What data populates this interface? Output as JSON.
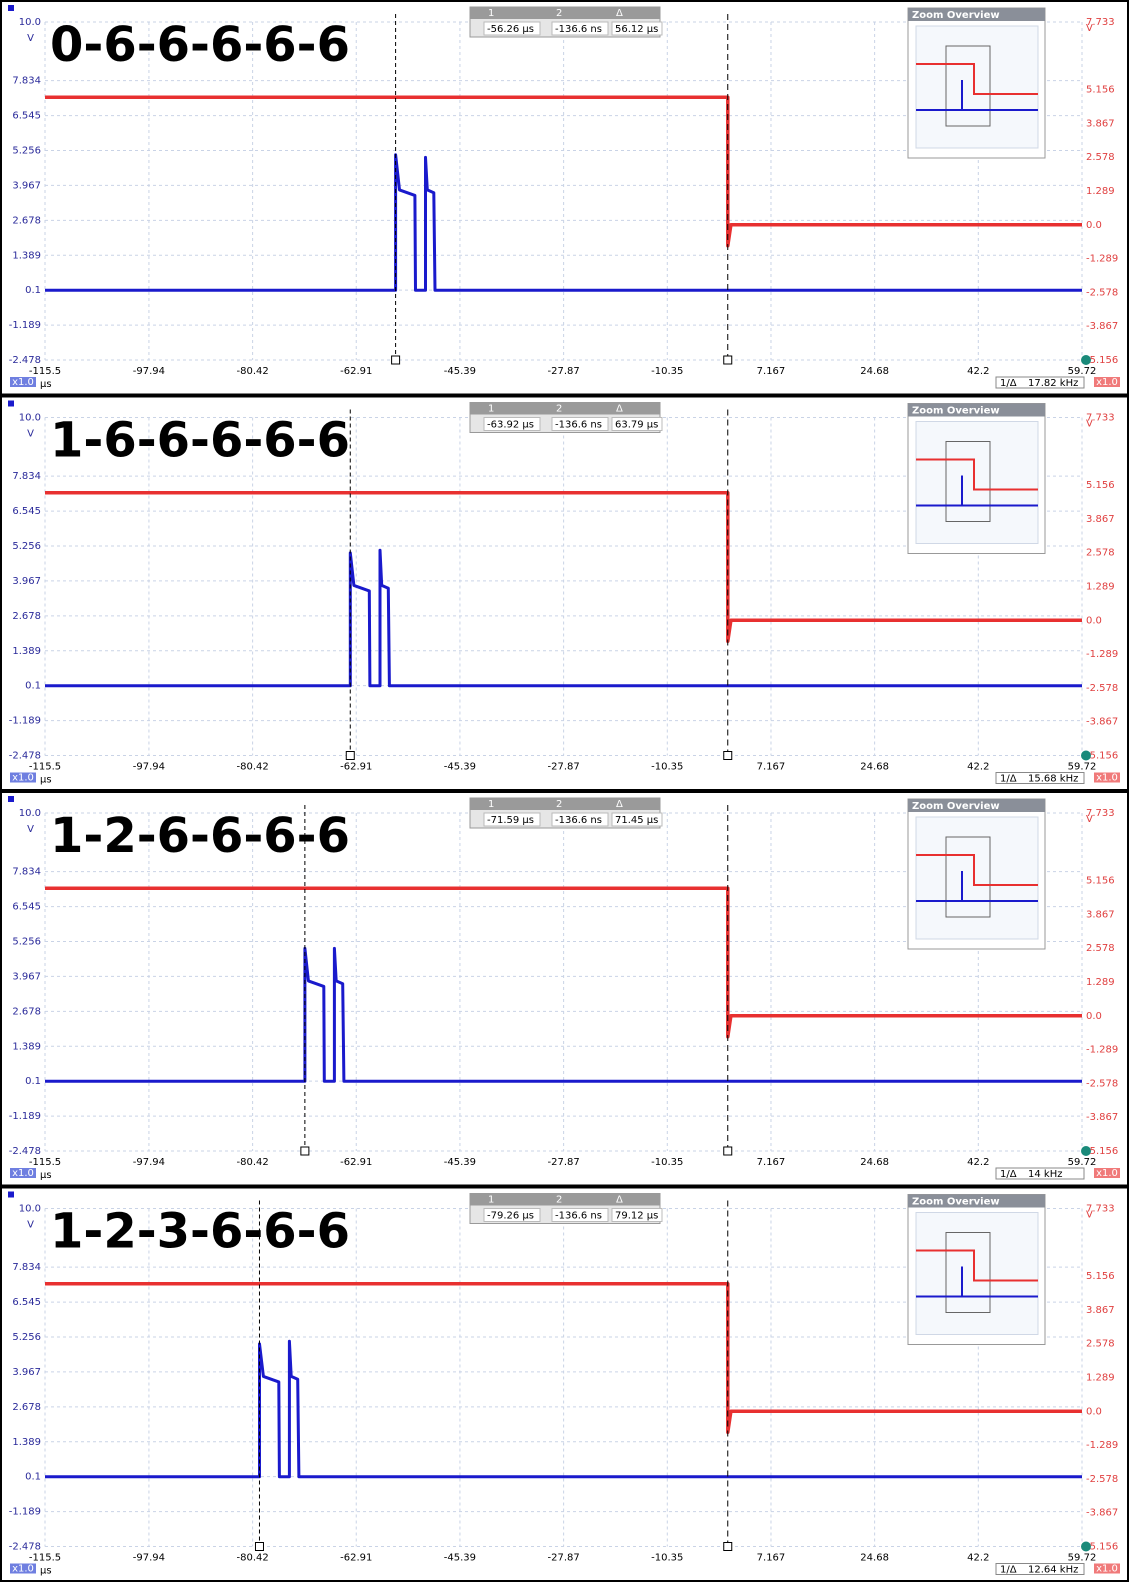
{
  "chart_data": [
    {
      "type": "line",
      "title": "0-6-6-6-6-6",
      "ylabel": "V",
      "y2label": "V",
      "xlabel": "µs",
      "x_badge": "x1.0",
      "y2_badge": "x1.0",
      "xlim": [
        -115.5,
        59.72
      ],
      "xticks": [
        -115.5,
        -97.94,
        -80.42,
        -62.91,
        -45.39,
        -27.87,
        -10.35,
        7.167,
        24.68,
        42.2,
        59.72
      ],
      "ylim": [
        -2.478,
        10
      ],
      "yticks": [
        -2.478,
        -1.189,
        0.1,
        1.389,
        2.678,
        3.967,
        5.256,
        6.545,
        7.834,
        {
          "value": 10,
          "label": "10.0"
        }
      ],
      "y2lim": [
        -5.156,
        7.733
      ],
      "y2ticks": [
        -5.156,
        -3.867,
        -2.578,
        -1.289,
        {
          "value": 0,
          "label": "0.0"
        },
        1.289,
        2.578,
        3.867,
        5.156,
        7.733
      ],
      "grid": true,
      "overview_title": "Zoom Overview",
      "cursors": [
        {
          "name": "1",
          "x": -56.26,
          "label": "-56.26 µs"
        },
        {
          "name": "2",
          "x": -0.1366,
          "label": "-136.6 ns"
        }
      ],
      "delta": {
        "name": "Δ",
        "label": "56.12 µs"
      },
      "readout": {
        "name": "1/Δ",
        "label": "17.82 kHz"
      },
      "series": [
        {
          "color": "#1a1acc",
          "axis": "y",
          "x": [
            -115.5,
            -56.26,
            -56.26,
            -55.6,
            -53.0,
            -52.9,
            -51.2,
            -51.2,
            -50.9,
            -49.8,
            -49.6,
            59.72
          ],
          "values": [
            0.1,
            0.1,
            5.1,
            3.8,
            3.6,
            0.1,
            0.1,
            5.0,
            3.8,
            3.7,
            0.1,
            0.1
          ]
        },
        {
          "color": "#e83030",
          "axis": "y2",
          "x": [
            -115.5,
            -0.1366,
            -0.1366,
            0.4,
            59.72
          ],
          "values": [
            4.86,
            4.86,
            -0.8,
            0,
            0
          ]
        }
      ]
    },
    {
      "type": "line",
      "title": "1-6-6-6-6-6",
      "ylabel": "V",
      "y2label": "V",
      "xlabel": "µs",
      "x_badge": "x1.0",
      "y2_badge": "x1.0",
      "xlim": [
        -115.5,
        59.72
      ],
      "xticks": [
        -115.5,
        -97.94,
        -80.42,
        -62.91,
        -45.39,
        -27.87,
        -10.35,
        7.167,
        24.68,
        42.2,
        59.72
      ],
      "ylim": [
        -2.478,
        10
      ],
      "yticks": [
        -2.478,
        -1.189,
        0.1,
        1.389,
        2.678,
        3.967,
        5.256,
        6.545,
        7.834,
        {
          "value": 10,
          "label": "10.0"
        }
      ],
      "y2lim": [
        -5.156,
        7.733
      ],
      "y2ticks": [
        -5.156,
        -3.867,
        -2.578,
        -1.289,
        {
          "value": 0,
          "label": "0.0"
        },
        1.289,
        2.578,
        3.867,
        5.156,
        7.733
      ],
      "grid": true,
      "overview_title": "Zoom Overview",
      "cursors": [
        {
          "name": "1",
          "x": -63.92,
          "label": "-63.92 µs"
        },
        {
          "name": "2",
          "x": -0.1366,
          "label": "-136.6 ns"
        }
      ],
      "delta": {
        "name": "Δ",
        "label": "63.79 µs"
      },
      "readout": {
        "name": "1/Δ",
        "label": "15.68 kHz"
      },
      "series": [
        {
          "color": "#1a1acc",
          "axis": "y",
          "x": [
            -115.5,
            -63.92,
            -63.92,
            -63.3,
            -60.7,
            -60.6,
            -58.9,
            -58.9,
            -58.6,
            -57.5,
            -57.3,
            59.72
          ],
          "values": [
            0.1,
            0.1,
            5.0,
            3.8,
            3.6,
            0.1,
            0.1,
            5.1,
            3.8,
            3.7,
            0.1,
            0.1
          ]
        },
        {
          "color": "#e83030",
          "axis": "y2",
          "x": [
            -115.5,
            -0.1366,
            -0.1366,
            0.4,
            59.72
          ],
          "values": [
            4.86,
            4.86,
            -0.8,
            0,
            0
          ]
        }
      ]
    },
    {
      "type": "line",
      "title": "1-2-6-6-6-6",
      "ylabel": "V",
      "y2label": "V",
      "xlabel": "µs",
      "x_badge": "x1.0",
      "y2_badge": "x1.0",
      "xlim": [
        -115.5,
        59.72
      ],
      "xticks": [
        -115.5,
        -97.94,
        -80.42,
        -62.91,
        -45.39,
        -27.87,
        -10.35,
        7.167,
        24.68,
        42.2,
        59.72
      ],
      "ylim": [
        -2.478,
        10
      ],
      "yticks": [
        -2.478,
        -1.189,
        0.1,
        1.389,
        2.678,
        3.967,
        5.256,
        6.545,
        7.834,
        {
          "value": 10,
          "label": "10.0"
        }
      ],
      "y2lim": [
        -5.156,
        7.733
      ],
      "y2ticks": [
        -5.156,
        -3.867,
        -2.578,
        -1.289,
        {
          "value": 0,
          "label": "0.0"
        },
        1.289,
        2.578,
        3.867,
        5.156,
        7.733
      ],
      "grid": true,
      "overview_title": "Zoom Overview",
      "cursors": [
        {
          "name": "1",
          "x": -71.59,
          "label": "-71.59 µs"
        },
        {
          "name": "2",
          "x": -0.1366,
          "label": "-136.6 ns"
        }
      ],
      "delta": {
        "name": "Δ",
        "label": "71.45 µs"
      },
      "readout": {
        "name": "1/Δ",
        "label": "14 kHz"
      },
      "series": [
        {
          "color": "#1a1acc",
          "axis": "y",
          "x": [
            -115.5,
            -71.59,
            -71.59,
            -71.0,
            -68.4,
            -68.3,
            -66.6,
            -66.6,
            -66.3,
            -65.2,
            -65.0,
            59.72
          ],
          "values": [
            0.1,
            0.1,
            5.0,
            3.8,
            3.6,
            0.1,
            0.1,
            5.0,
            3.8,
            3.7,
            0.1,
            0.1
          ]
        },
        {
          "color": "#e83030",
          "axis": "y2",
          "x": [
            -115.5,
            -0.1366,
            -0.1366,
            0.4,
            59.72
          ],
          "values": [
            4.86,
            4.86,
            -0.8,
            0,
            0
          ]
        }
      ]
    },
    {
      "type": "line",
      "title": "1-2-3-6-6-6",
      "ylabel": "V",
      "y2label": "V",
      "xlabel": "µs",
      "x_badge": "x1.0",
      "y2_badge": "x1.0",
      "xlim": [
        -115.5,
        59.72
      ],
      "xticks": [
        -115.5,
        -97.94,
        -80.42,
        -62.91,
        -45.39,
        -27.87,
        -10.35,
        7.167,
        24.68,
        42.2,
        59.72
      ],
      "ylim": [
        -2.478,
        10
      ],
      "yticks": [
        -2.478,
        -1.189,
        0.1,
        1.389,
        2.678,
        3.967,
        5.256,
        6.545,
        7.834,
        {
          "value": 10,
          "label": "10.0"
        }
      ],
      "y2lim": [
        -5.156,
        7.733
      ],
      "y2ticks": [
        -5.156,
        -3.867,
        -2.578,
        -1.289,
        {
          "value": 0,
          "label": "0.0"
        },
        1.289,
        2.578,
        3.867,
        5.156,
        7.733
      ],
      "grid": true,
      "overview_title": "Zoom Overview",
      "cursors": [
        {
          "name": "1",
          "x": -79.26,
          "label": "-79.26 µs"
        },
        {
          "name": "2",
          "x": -0.1366,
          "label": "-136.6 ns"
        }
      ],
      "delta": {
        "name": "Δ",
        "label": "79.12 µs"
      },
      "readout": {
        "name": "1/Δ",
        "label": "12.64 kHz"
      },
      "series": [
        {
          "color": "#1a1acc",
          "axis": "y",
          "x": [
            -115.5,
            -79.26,
            -79.26,
            -78.6,
            -76.0,
            -75.9,
            -74.2,
            -74.2,
            -73.9,
            -72.8,
            -72.6,
            59.72
          ],
          "values": [
            0.1,
            0.1,
            5.0,
            3.8,
            3.6,
            0.1,
            0.1,
            5.1,
            3.8,
            3.7,
            0.1,
            0.1
          ]
        },
        {
          "color": "#e83030",
          "axis": "y2",
          "x": [
            -115.5,
            -0.1366,
            -0.1366,
            0.4,
            59.72
          ],
          "values": [
            4.86,
            4.86,
            -0.8,
            0,
            0
          ]
        }
      ]
    }
  ]
}
